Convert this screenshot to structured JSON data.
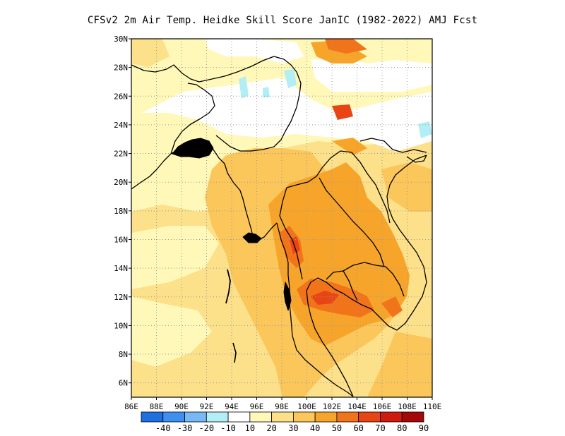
{
  "title": "CFSv2  2m Air Temp. Heidke Skill Score JanIC (1982-2022) AMJ Fcst",
  "map": {
    "lon_range": [
      86,
      110
    ],
    "lat_range": [
      5,
      30
    ],
    "lat_ticks": [
      "6N",
      "8N",
      "10N",
      "12N",
      "14N",
      "16N",
      "18N",
      "20N",
      "22N",
      "24N",
      "26N",
      "28N",
      "30N"
    ],
    "lon_ticks": [
      "86E",
      "88E",
      "90E",
      "92E",
      "94E",
      "96E",
      "98E",
      "100E",
      "102E",
      "104E",
      "106E",
      "108E",
      "110E"
    ]
  },
  "colorbar": {
    "labels": [
      "-40",
      "-30",
      "-20",
      "-10",
      "10",
      "20",
      "30",
      "40",
      "50",
      "60",
      "70",
      "80",
      "90"
    ],
    "colors": [
      "#1e6fe0",
      "#3d8ff0",
      "#78b8f5",
      "#b2eef5",
      "#ffffff",
      "#fff8b8",
      "#fde08a",
      "#fbc65a",
      "#f7a52a",
      "#f2741a",
      "#e94414",
      "#cf1a0e",
      "#a5080a"
    ]
  },
  "skill_colors": {
    "white": "#ffffff",
    "c10": "#fff8b8",
    "c20": "#fde08a",
    "c30": "#fbc65a",
    "c40": "#f7a52a",
    "c50": "#f2741a",
    "c60": "#e94414",
    "neg": "#b2eef5"
  }
}
